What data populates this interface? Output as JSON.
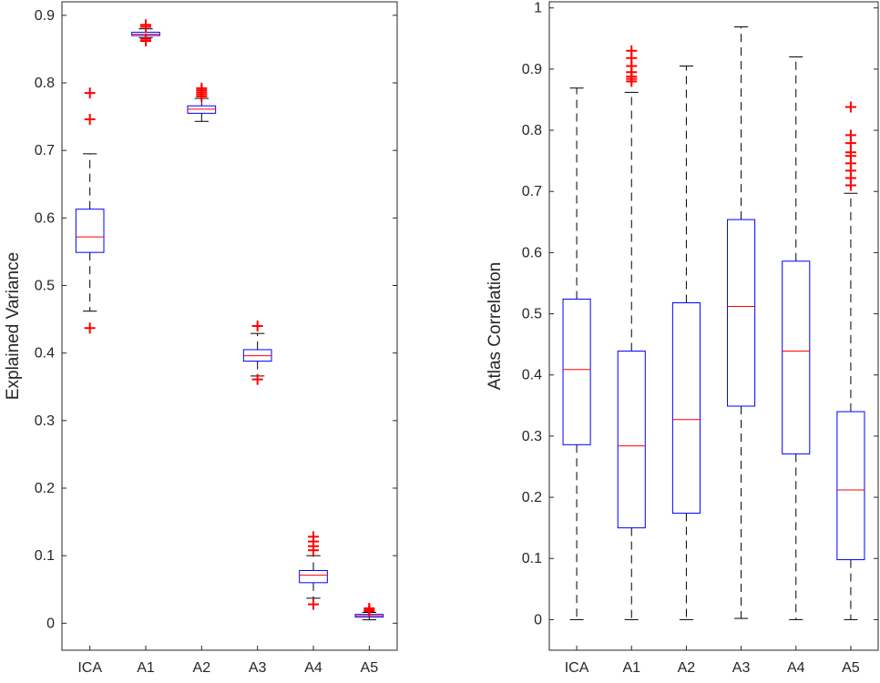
{
  "chart_data": [
    {
      "type": "box",
      "ylabel": "Explained Variance",
      "categories": [
        "ICA",
        "A1",
        "A2",
        "A3",
        "A4",
        "A5"
      ],
      "ylim": [
        -0.04,
        0.92
      ],
      "yticks": [
        0,
        0.1,
        0.2,
        0.3,
        0.4,
        0.5,
        0.6,
        0.7,
        0.8,
        0.9
      ],
      "ytick_labels": [
        "0",
        "0.1",
        "0.2",
        "0.3",
        "0.4",
        "0.5",
        "0.6",
        "0.7",
        "0.8",
        "0.9"
      ],
      "boxes": [
        {
          "name": "ICA",
          "whisker_low": 0.462,
          "q1": 0.549,
          "median": 0.572,
          "q3": 0.613,
          "whisker_high": 0.695,
          "outliers": [
            0.437,
            0.746,
            0.785
          ]
        },
        {
          "name": "A1",
          "whisker_low": 0.867,
          "q1": 0.87,
          "median": 0.872,
          "q3": 0.875,
          "whisker_high": 0.88,
          "outliers": [
            0.862,
            0.865,
            0.883,
            0.886
          ]
        },
        {
          "name": "A2",
          "whisker_low": 0.743,
          "q1": 0.755,
          "median": 0.761,
          "q3": 0.766,
          "whisker_high": 0.777,
          "outliers": [
            0.78,
            0.783,
            0.786,
            0.789,
            0.792
          ]
        },
        {
          "name": "A3",
          "whisker_low": 0.366,
          "q1": 0.388,
          "median": 0.396,
          "q3": 0.405,
          "whisker_high": 0.429,
          "outliers": [
            0.361,
            0.44
          ]
        },
        {
          "name": "A4",
          "whisker_low": 0.037,
          "q1": 0.06,
          "median": 0.071,
          "q3": 0.078,
          "whisker_high": 0.1,
          "outliers": [
            0.028,
            0.108,
            0.114,
            0.121,
            0.128
          ]
        },
        {
          "name": "A5",
          "whisker_low": 0.005,
          "q1": 0.009,
          "median": 0.011,
          "q3": 0.013,
          "whisker_high": 0.016,
          "outliers": [
            0.018,
            0.02,
            0.022
          ]
        }
      ],
      "colors": {
        "box": "#0000ff",
        "median": "#ff0000",
        "whisker": "#000000",
        "outlier": "#ff0000"
      }
    },
    {
      "type": "box",
      "ylabel": "Atlas Correlation",
      "categories": [
        "ICA",
        "A1",
        "A2",
        "A3",
        "A4",
        "A5"
      ],
      "ylim": [
        -0.05,
        1.01
      ],
      "yticks": [
        0,
        0.1,
        0.2,
        0.3,
        0.4,
        0.5,
        0.6,
        0.7,
        0.8,
        0.9,
        1
      ],
      "ytick_labels": [
        "0",
        "0.1",
        "0.2",
        "0.3",
        "0.4",
        "0.5",
        "0.6",
        "0.7",
        "0.8",
        "0.9",
        "1"
      ],
      "boxes": [
        {
          "name": "ICA",
          "whisker_low": 0.0,
          "q1": 0.286,
          "median": 0.409,
          "q3": 0.524,
          "whisker_high": 0.869,
          "outliers": []
        },
        {
          "name": "A1",
          "whisker_low": 0.0,
          "q1": 0.15,
          "median": 0.284,
          "q3": 0.439,
          "whisker_high": 0.862,
          "outliers": [
            0.88,
            0.884,
            0.888,
            0.895,
            0.905,
            0.918,
            0.93
          ]
        },
        {
          "name": "A2",
          "whisker_low": 0.0,
          "q1": 0.174,
          "median": 0.327,
          "q3": 0.518,
          "whisker_high": 0.905,
          "outliers": []
        },
        {
          "name": "A3",
          "whisker_low": 0.002,
          "q1": 0.349,
          "median": 0.512,
          "q3": 0.654,
          "whisker_high": 0.969,
          "outliers": []
        },
        {
          "name": "A4",
          "whisker_low": 0.0,
          "q1": 0.271,
          "median": 0.439,
          "q3": 0.586,
          "whisker_high": 0.92,
          "outliers": []
        },
        {
          "name": "A5",
          "whisker_low": 0.0,
          "q1": 0.098,
          "median": 0.212,
          "q3": 0.34,
          "whisker_high": 0.697,
          "outliers": [
            0.71,
            0.722,
            0.734,
            0.746,
            0.758,
            0.764,
            0.779,
            0.792,
            0.838
          ]
        }
      ],
      "colors": {
        "box": "#0000ff",
        "median": "#ff0000",
        "whisker": "#000000",
        "outlier": "#ff0000"
      }
    }
  ]
}
